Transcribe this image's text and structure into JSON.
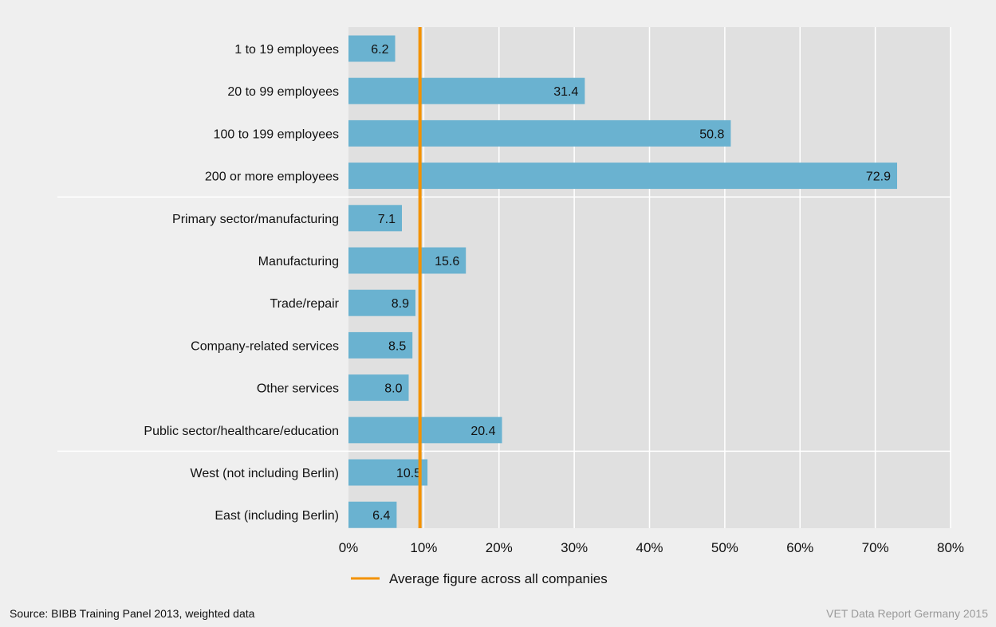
{
  "chart_data": {
    "type": "bar",
    "orientation": "horizontal",
    "categories": [
      "1 to 19 employees",
      "20 to 99 employees",
      "100 to 199 employees",
      "200 or more employees",
      "Primary sector/manufacturing",
      "Manufacturing",
      "Trade/repair",
      "Company-related services",
      "Other services",
      "Public sector/healthcare/education",
      "West (not including Berlin)",
      "East (including Berlin)"
    ],
    "values": [
      6.2,
      31.4,
      50.8,
      72.9,
      7.1,
      15.6,
      8.9,
      8.5,
      8.0,
      20.4,
      10.5,
      6.4
    ],
    "value_labels": [
      "6.2",
      "31.4",
      "50.8",
      "72.9",
      "7.1",
      "15.6",
      "8.9",
      "8.5",
      "8.0",
      "20.4",
      "10.5",
      "6.4"
    ],
    "group_breaks_after": [
      3,
      9
    ],
    "xlim": [
      0,
      80
    ],
    "xticks": [
      0,
      10,
      20,
      30,
      40,
      50,
      60,
      70,
      80
    ],
    "xtick_labels": [
      "0%",
      "10%",
      "20%",
      "30%",
      "40%",
      "50%",
      "60%",
      "70%",
      "80%"
    ],
    "reference_line": {
      "value": 9.5,
      "label": "Average figure across all companies"
    },
    "grid": true,
    "legend": "bottom-center",
    "colors": {
      "bar": "#6ab2d0",
      "reference": "#f39200",
      "plot_bg": "#e0e0e0",
      "page_bg": "#efefef",
      "grid": "#ffffff"
    }
  },
  "footer": {
    "source": "Source: BIBB Training Panel 2013, weighted data",
    "credit": "VET Data Report Germany 2015"
  }
}
